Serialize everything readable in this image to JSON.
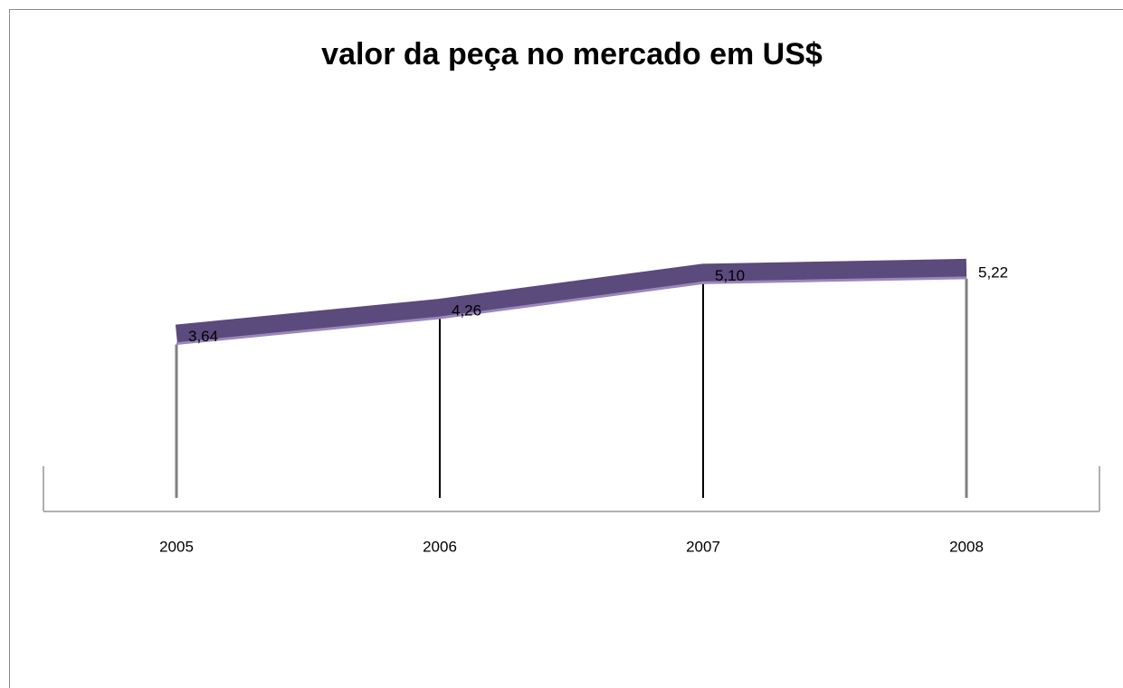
{
  "chart_data": {
    "type": "line",
    "title": "valor da peça no mercado em US$",
    "categories": [
      "2005",
      "2006",
      "2007",
      "2008"
    ],
    "values": [
      3.64,
      4.26,
      5.1,
      5.22
    ],
    "value_labels": [
      "3,64",
      "4,26",
      "5,10",
      "5,22"
    ],
    "color": "#5b4a7c"
  }
}
